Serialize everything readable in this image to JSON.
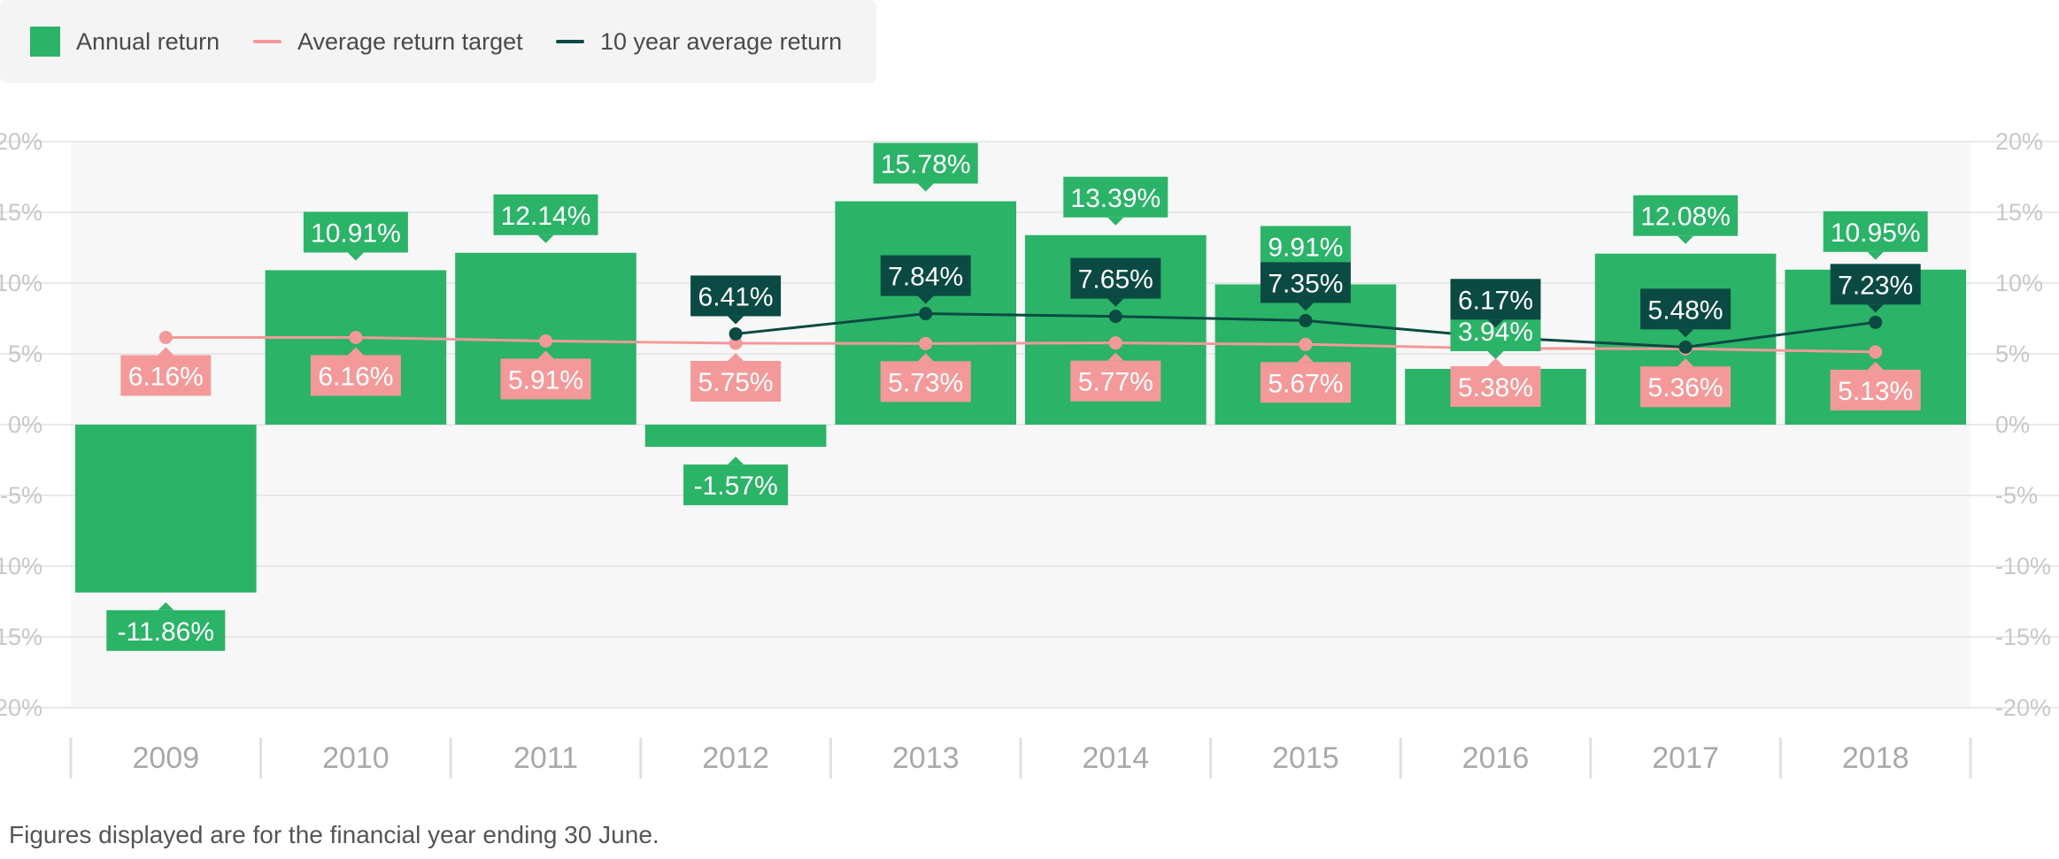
{
  "legend": {
    "annual_label": "Annual return",
    "target_label": "Average return target",
    "avg10_label": "10 year average return"
  },
  "footnote": "Figures displayed are for the financial year ending 30 June.",
  "colors": {
    "bar": "#2bb368",
    "target": "#f4999a",
    "avg10": "#0b4a42",
    "plot_bg": "#f7f7f7",
    "grid": "#e2e2e2"
  },
  "chart_data": {
    "type": "bar",
    "categories": [
      "2009",
      "2010",
      "2011",
      "2012",
      "2013",
      "2014",
      "2015",
      "2016",
      "2017",
      "2018"
    ],
    "series": [
      {
        "name": "Annual return",
        "type": "bar",
        "values": [
          -11.86,
          10.91,
          12.14,
          -1.57,
          15.78,
          13.39,
          9.91,
          3.94,
          12.08,
          10.95
        ],
        "labels": [
          "-11.86%",
          "10.91%",
          "12.14%",
          "-1.57%",
          "15.78%",
          "13.39%",
          "9.91%",
          "3.94%",
          "12.08%",
          "10.95%"
        ]
      },
      {
        "name": "Average return target",
        "type": "line",
        "values": [
          6.16,
          6.16,
          5.91,
          5.75,
          5.73,
          5.77,
          5.67,
          5.38,
          5.36,
          5.13
        ],
        "labels": [
          "6.16%",
          "6.16%",
          "5.91%",
          "5.75%",
          "5.73%",
          "5.77%",
          "5.67%",
          "5.38%",
          "5.36%",
          "5.13%"
        ]
      },
      {
        "name": "10 year average return",
        "type": "line",
        "values": [
          null,
          null,
          null,
          6.41,
          7.84,
          7.65,
          7.35,
          6.17,
          5.48,
          7.23
        ],
        "labels": [
          null,
          null,
          null,
          "6.41%",
          "7.84%",
          "7.65%",
          "7.35%",
          "6.17%",
          "5.48%",
          "7.23%"
        ]
      }
    ],
    "y_ticks": [
      20,
      15,
      10,
      5,
      0,
      -5,
      -10,
      -15,
      -20
    ],
    "y_tick_labels": [
      "20%",
      "15%",
      "10%",
      "5%",
      "0%",
      "-5%",
      "-10%",
      "-15%",
      "-20%"
    ],
    "ylim": [
      -20,
      20
    ],
    "grid": true,
    "legend_position": "top-left"
  }
}
